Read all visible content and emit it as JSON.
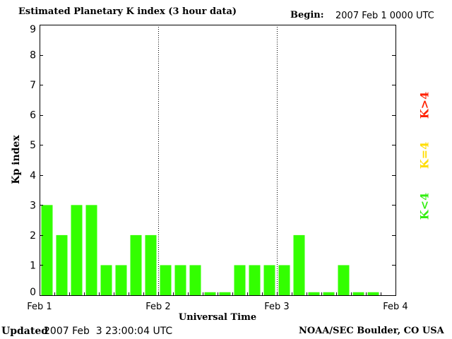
{
  "header": {
    "title": "Estimated Planetary K index (3 hour data)",
    "begin_label": "Begin:",
    "begin_value": "2007 Feb 1 0000 UTC"
  },
  "footer": {
    "updated_label": "Updated",
    "updated_value": "2007 Feb  3 23:00:04 UTC",
    "credit": "NOAA/SEC Boulder, CO USA"
  },
  "legend": {
    "gt": {
      "label": "K>4",
      "color": "#ff2200"
    },
    "eq": {
      "label": "K=4",
      "color": "#ffdd00"
    },
    "lt": {
      "label": "K<4",
      "color": "#33ee11"
    }
  },
  "chart_data": {
    "type": "bar",
    "xlabel": "Universal Time",
    "ylabel": "Kp index",
    "ylim": [
      0,
      9
    ],
    "yticks": [
      "0",
      "1",
      "2",
      "3",
      "4",
      "5",
      "6",
      "7",
      "8",
      "9"
    ],
    "day_labels": [
      "Feb 1",
      "Feb 2",
      "Feb 3",
      "Feb 4"
    ],
    "bar_color": "#33ff00",
    "grid": "dotted day separators",
    "values": [
      3,
      2,
      3,
      3,
      1,
      1,
      2,
      2,
      1,
      1,
      1,
      0.1,
      0.1,
      1,
      1,
      1,
      1,
      2,
      0.1,
      0.1,
      1,
      0.1,
      0.1
    ]
  }
}
